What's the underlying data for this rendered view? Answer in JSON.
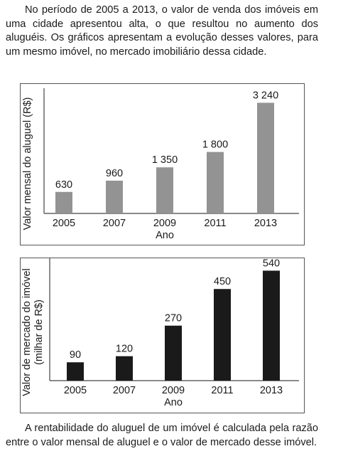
{
  "intro_text": "No período de 2005 a 2013, o valor de venda dos imóveis em uma cidade apresentou alta, o que resultou no aumento dos aluguéis. Os gráficos apresentam a evolução desses valores, para um mesmo imóvel, no mercado imobiliário dessa cidade.",
  "outro_text": "A rentabilidade do aluguel de um imóvel é calculada pela razão entre o valor mensal de aluguel e o valor de mercado desse imóvel.",
  "chart_data": [
    {
      "type": "bar",
      "categories": [
        "2005",
        "2007",
        "2009",
        "2011",
        "2013"
      ],
      "values": [
        630,
        960,
        1350,
        1800,
        3240
      ],
      "value_labels": [
        "630",
        "960",
        "1 350",
        "1 800",
        "3 240"
      ],
      "xlabel": "Ano",
      "ylabel": [
        "Valor mensal do aluguel (R$)"
      ],
      "ylim": [
        0,
        3500
      ],
      "bar_color": "#939393",
      "grid": false,
      "y_ticks_shown": false
    },
    {
      "type": "bar",
      "categories": [
        "2005",
        "2007",
        "2009",
        "2011",
        "2013"
      ],
      "values": [
        90,
        120,
        270,
        450,
        540
      ],
      "value_labels": [
        "90",
        "120",
        "270",
        "450",
        "540"
      ],
      "xlabel": "Ano",
      "ylabel": [
        "Valor de mercado do imóvel",
        "(milhar de R$)"
      ],
      "ylim": [
        0,
        580
      ],
      "bar_color": "#1a1a1a",
      "grid": false,
      "y_ticks_shown": false
    }
  ]
}
